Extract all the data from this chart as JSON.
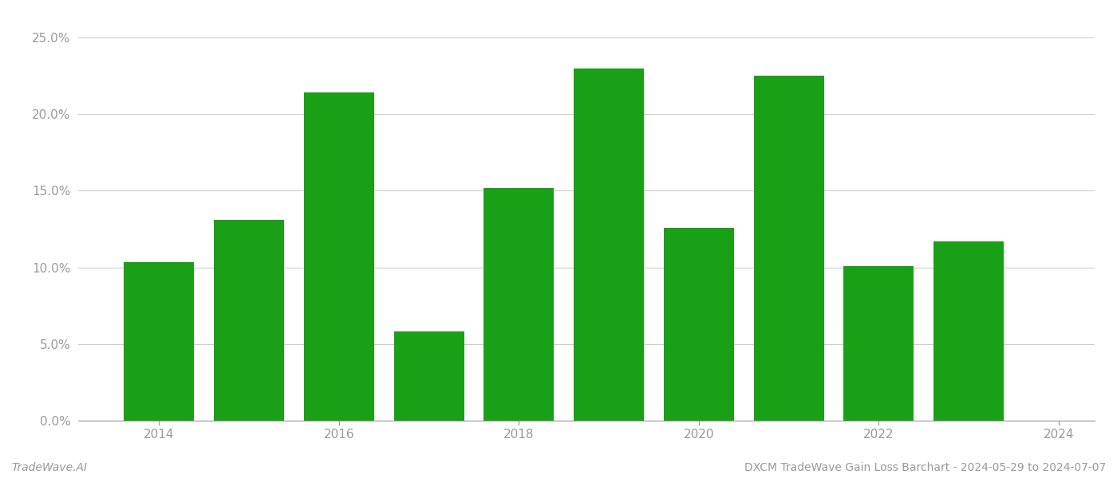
{
  "years": [
    2014,
    2015,
    2016,
    2017,
    2018,
    2019,
    2020,
    2021,
    2022,
    2023
  ],
  "values": [
    0.1032,
    0.1308,
    0.2142,
    0.0583,
    0.1518,
    0.2295,
    0.126,
    0.2248,
    0.101,
    0.117
  ],
  "bar_color": "#1aa016",
  "background_color": "#ffffff",
  "grid_color": "#cccccc",
  "axis_color": "#999999",
  "ylim": [
    0,
    0.265
  ],
  "yticks": [
    0.0,
    0.05,
    0.1,
    0.15,
    0.2,
    0.25
  ],
  "xtick_years": [
    2014,
    2016,
    2018,
    2020,
    2022,
    2024
  ],
  "xlim": [
    2013.1,
    2024.4
  ],
  "footer_left": "TradeWave.AI",
  "footer_right": "DXCM TradeWave Gain Loss Barchart - 2024-05-29 to 2024-07-07",
  "bar_width": 0.78,
  "tick_fontsize": 11,
  "footer_fontsize": 10
}
